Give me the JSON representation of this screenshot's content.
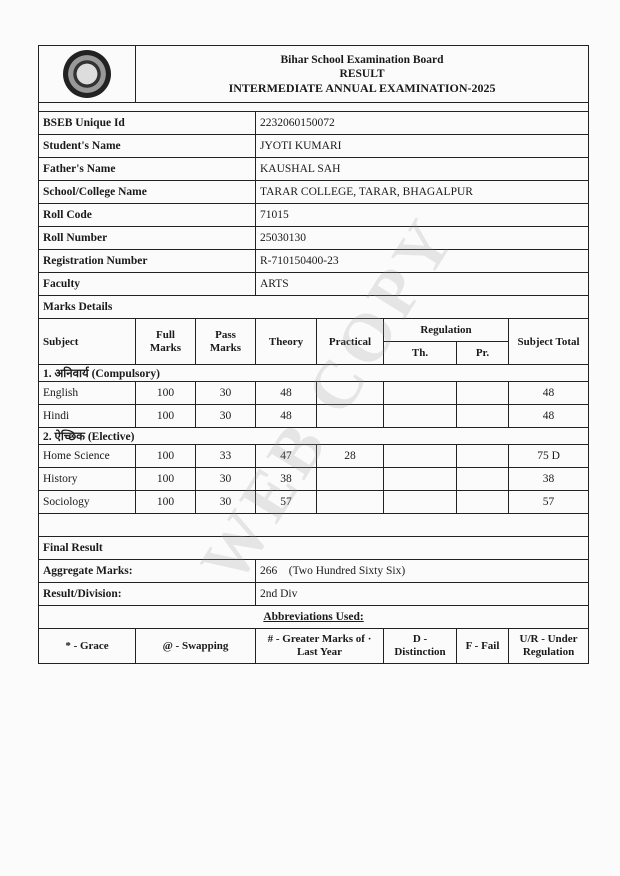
{
  "header": {
    "board": "Bihar School Examination Board",
    "doc_type": "RESULT",
    "exam": "INTERMEDIATE ANNUAL EXAMINATION-2025",
    "logo": "bseb-seal"
  },
  "student": [
    {
      "label": "BSEB Unique Id",
      "value": "2232060150072"
    },
    {
      "label": "Student's Name",
      "value": "JYOTI KUMARI"
    },
    {
      "label": "Father's Name",
      "value": "KAUSHAL SAH"
    },
    {
      "label": "School/College Name",
      "value": "TARAR COLLEGE, TARAR, BHAGALPUR"
    },
    {
      "label": "Roll Code",
      "value": "71015"
    },
    {
      "label": "Roll Number",
      "value": "25030130"
    },
    {
      "label": "Registration Number",
      "value": "R-710150400-23"
    },
    {
      "label": "Faculty",
      "value": "ARTS"
    }
  ],
  "marks": {
    "title": "Marks Details",
    "headers": {
      "subject": "Subject",
      "full": "Full Marks",
      "pass": "Pass Marks",
      "theory": "Theory",
      "practical": "Practical",
      "regulation": "Regulation",
      "th": "Th.",
      "pr": "Pr.",
      "total": "Subject Total"
    },
    "sections": [
      {
        "title": "1. अनिवार्य (Compulsory)",
        "rows": [
          {
            "subject": "English",
            "full": "100",
            "pass": "30",
            "theory": "48",
            "practical": "",
            "th": "",
            "pr": "",
            "total": "48"
          },
          {
            "subject": "Hindi",
            "full": "100",
            "pass": "30",
            "theory": "48",
            "practical": "",
            "th": "",
            "pr": "",
            "total": "48"
          }
        ]
      },
      {
        "title": "2. ऐच्छिक (Elective)",
        "rows": [
          {
            "subject": "Home Science",
            "full": "100",
            "pass": "33",
            "theory": "47",
            "practical": "28",
            "th": "",
            "pr": "",
            "total": "75 D"
          },
          {
            "subject": "History",
            "full": "100",
            "pass": "30",
            "theory": "38",
            "practical": "",
            "th": "",
            "pr": "",
            "total": "38"
          },
          {
            "subject": "Sociology",
            "full": "100",
            "pass": "30",
            "theory": "57",
            "practical": "",
            "th": "",
            "pr": "",
            "total": "57"
          }
        ]
      }
    ]
  },
  "final": {
    "title": "Final Result",
    "aggregate_label": "Aggregate Marks:",
    "aggregate_value": "266    (Two Hundred Sixty Six)",
    "result_label": "Result/Division:",
    "result_value": "2nd Div"
  },
  "abbreviations": {
    "title": "Abbreviations Used:",
    "items": [
      "* - Grace",
      "@ - Swapping",
      "# - Greater Marks of · Last Year",
      "D - Distinction",
      "F - Fail",
      "U/R - Under Regulation"
    ]
  },
  "watermark": "WEB COPY"
}
